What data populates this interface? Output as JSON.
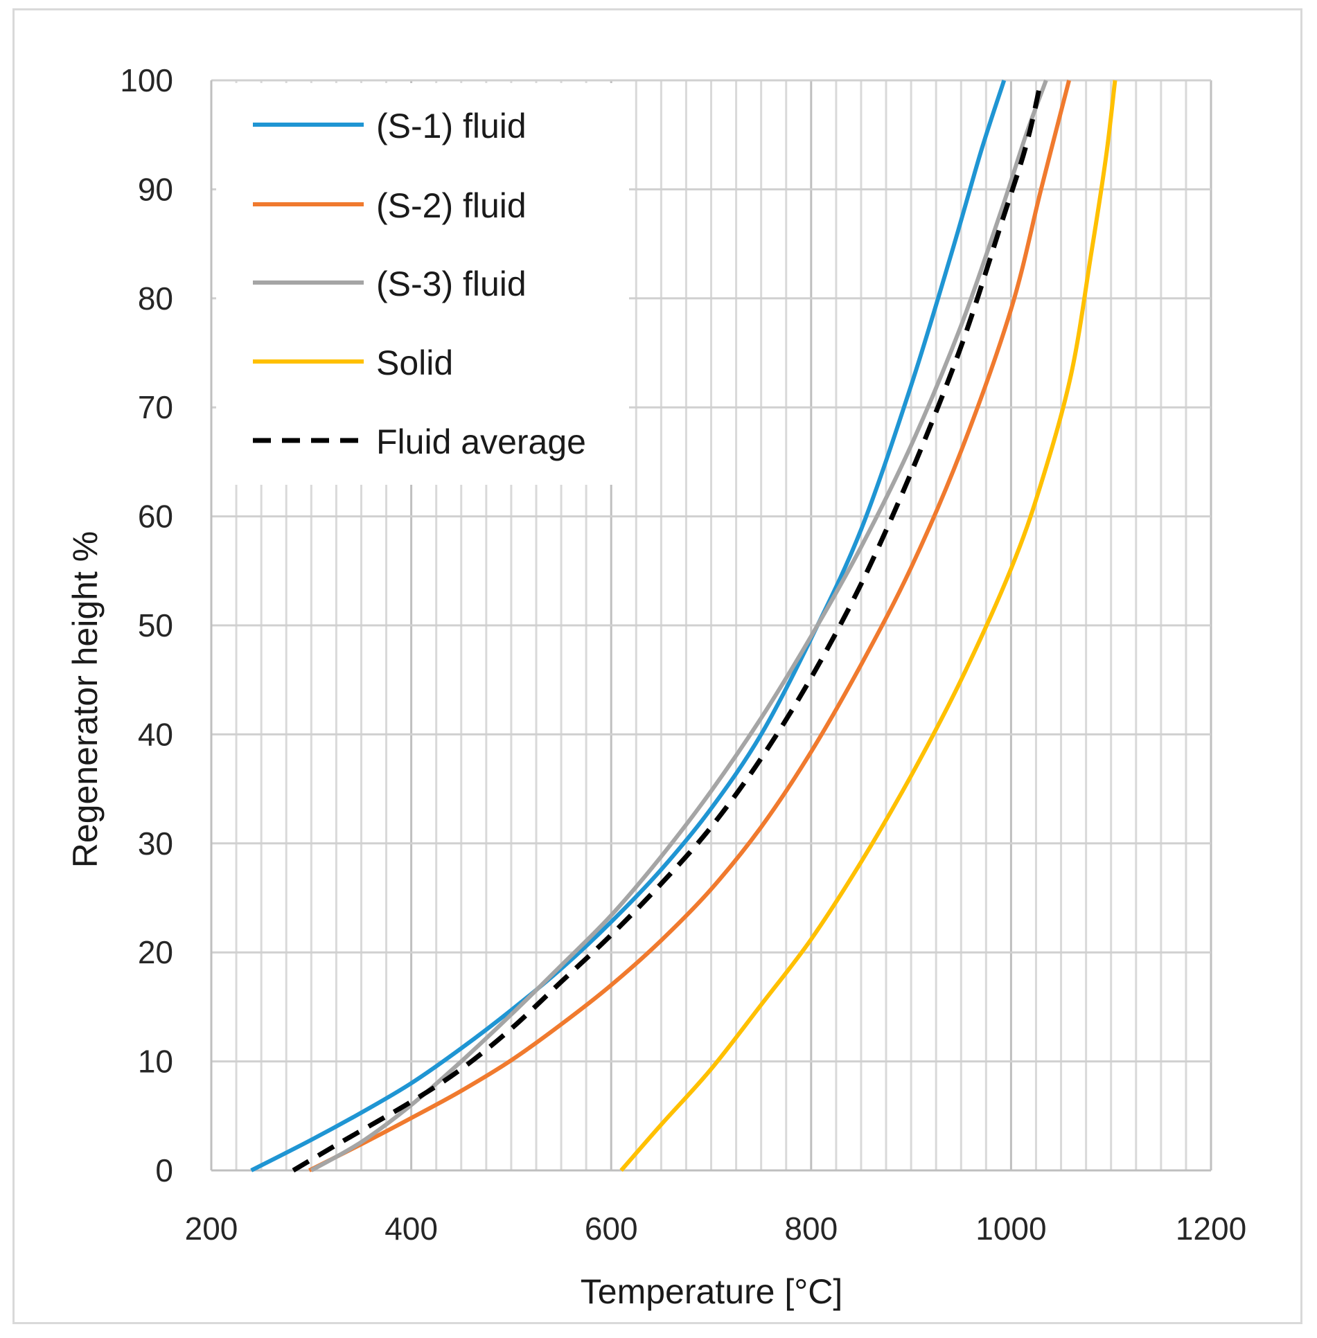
{
  "chart_data": {
    "type": "line",
    "title": "",
    "xlabel": "Temperature [°C]",
    "ylabel": "Regenerator height %",
    "xlim": [
      200,
      1200
    ],
    "ylim": [
      0,
      100
    ],
    "xticks": [
      200,
      400,
      600,
      800,
      1000,
      1200
    ],
    "yticks": [
      0,
      10,
      20,
      30,
      40,
      50,
      60,
      70,
      80,
      90,
      100
    ],
    "x_minor_step": 25,
    "grid": true,
    "legend_position": "top-left",
    "series": [
      {
        "name": "(S-1) fluid",
        "color": "#1f95d3",
        "dash": "solid",
        "points": [
          [
            240,
            0
          ],
          [
            300,
            2.8
          ],
          [
            350,
            5.3
          ],
          [
            400,
            8
          ],
          [
            450,
            11.2
          ],
          [
            500,
            14.7
          ],
          [
            550,
            18.5
          ],
          [
            600,
            22.8
          ],
          [
            650,
            27.6
          ],
          [
            700,
            33.2
          ],
          [
            750,
            40
          ],
          [
            800,
            48.8
          ],
          [
            850,
            58.8
          ],
          [
            900,
            72
          ],
          [
            940,
            84
          ],
          [
            970,
            93.5
          ],
          [
            993,
            100
          ]
        ]
      },
      {
        "name": "(S-2) fluid",
        "color": "#f07a2e",
        "dash": "solid",
        "points": [
          [
            298,
            0
          ],
          [
            350,
            2.4
          ],
          [
            400,
            4.8
          ],
          [
            450,
            7.3
          ],
          [
            500,
            10.1
          ],
          [
            550,
            13.4
          ],
          [
            600,
            17
          ],
          [
            650,
            21.1
          ],
          [
            700,
            25.8
          ],
          [
            750,
            31.5
          ],
          [
            800,
            38.4
          ],
          [
            850,
            46.4
          ],
          [
            900,
            55.3
          ],
          [
            950,
            66
          ],
          [
            1000,
            79
          ],
          [
            1030,
            90
          ],
          [
            1058,
            100
          ]
        ]
      },
      {
        "name": "(S-3) fluid",
        "color": "#a5a5a5",
        "dash": "solid",
        "points": [
          [
            300,
            0
          ],
          [
            350,
            2.6
          ],
          [
            400,
            6
          ],
          [
            450,
            10
          ],
          [
            500,
            14.3
          ],
          [
            550,
            18.8
          ],
          [
            600,
            23.4
          ],
          [
            650,
            28.8
          ],
          [
            700,
            34.8
          ],
          [
            750,
            41.5
          ],
          [
            800,
            49
          ],
          [
            850,
            57.2
          ],
          [
            900,
            66.5
          ],
          [
            950,
            77.5
          ],
          [
            990,
            88
          ],
          [
            1015,
            95
          ],
          [
            1035,
            100
          ]
        ]
      },
      {
        "name": "Solid",
        "color": "#ffc000",
        "dash": "solid",
        "points": [
          [
            610,
            0
          ],
          [
            650,
            4.2
          ],
          [
            700,
            9.3
          ],
          [
            750,
            15.2
          ],
          [
            800,
            21.2
          ],
          [
            850,
            28.3
          ],
          [
            900,
            36.2
          ],
          [
            950,
            45
          ],
          [
            1000,
            55.2
          ],
          [
            1030,
            63
          ],
          [
            1060,
            73
          ],
          [
            1080,
            84
          ],
          [
            1095,
            93
          ],
          [
            1104,
            100
          ]
        ]
      },
      {
        "name": "Fluid average",
        "color": "#000000",
        "dash": "dashed",
        "points": [
          [
            282,
            0
          ],
          [
            330,
            2.6
          ],
          [
            400,
            6.3
          ],
          [
            450,
            9.3
          ],
          [
            500,
            13
          ],
          [
            550,
            17.3
          ],
          [
            600,
            21.6
          ],
          [
            650,
            26.3
          ],
          [
            700,
            31.5
          ],
          [
            750,
            37.8
          ],
          [
            800,
            45.2
          ],
          [
            850,
            53.8
          ],
          [
            900,
            64
          ],
          [
            950,
            75.6
          ],
          [
            990,
            86.8
          ],
          [
            1015,
            94
          ],
          [
            1030,
            100
          ]
        ]
      }
    ]
  }
}
